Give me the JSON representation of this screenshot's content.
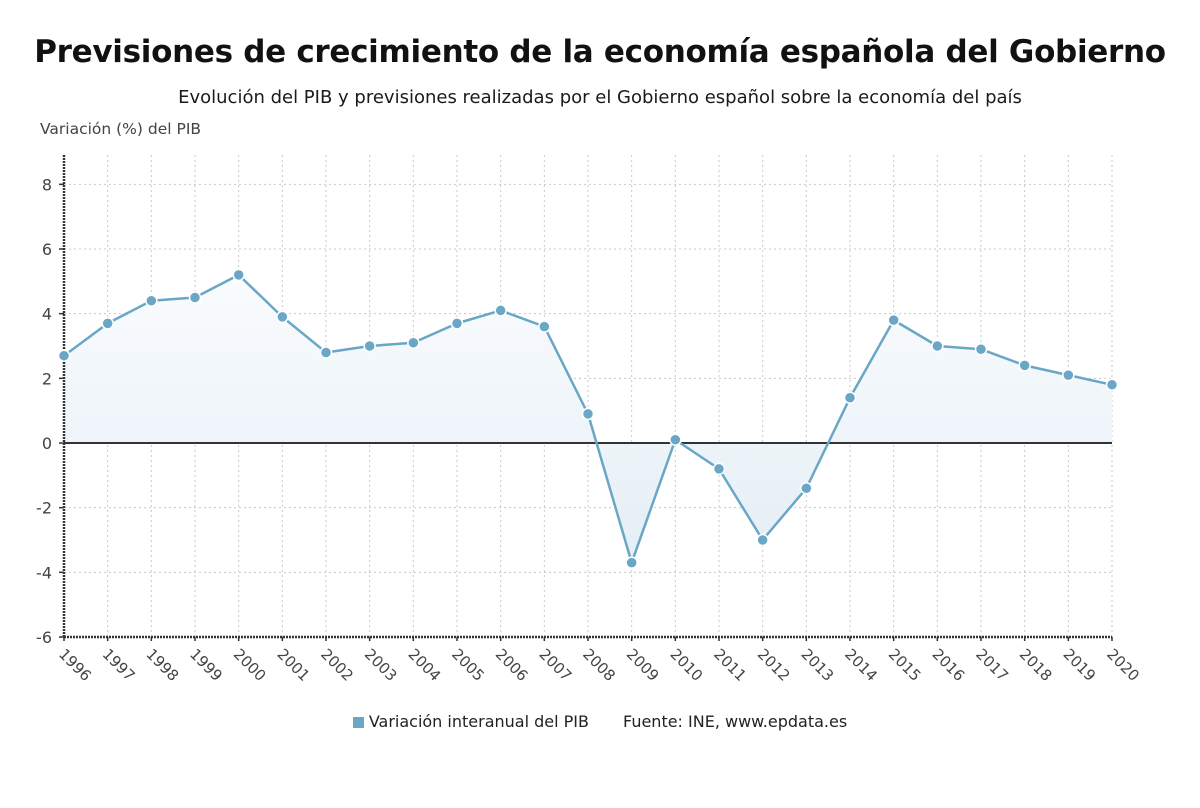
{
  "chart_data": {
    "type": "area",
    "title": "Previsiones de crecimiento de la economía española del Gobierno",
    "subtitle": "Evolución del PIB y previsiones realizadas por el Gobierno español sobre la economía del país",
    "xlabel": "",
    "ylabel": "Variación (%) del PIB",
    "x": [
      "1996",
      "1997",
      "1998",
      "1999",
      "2000",
      "2001",
      "2002",
      "2003",
      "2004",
      "2005",
      "2006",
      "2007",
      "2008",
      "2009",
      "2010",
      "2011",
      "2012",
      "2013",
      "2014",
      "2015",
      "2016",
      "2017",
      "2018",
      "2019",
      "2020"
    ],
    "series": [
      {
        "name": "Variación interanual del PIB",
        "values": [
          2.7,
          3.7,
          4.4,
          4.5,
          5.2,
          3.9,
          2.8,
          3.0,
          3.1,
          3.7,
          4.1,
          3.6,
          0.9,
          -3.7,
          0.1,
          -0.8,
          -3.0,
          -1.4,
          1.4,
          3.8,
          3.0,
          2.9,
          2.4,
          2.1,
          1.8
        ],
        "color": "#6aa6c6"
      }
    ],
    "ylim": [
      -6,
      9
    ],
    "yticks": [
      "-6",
      "-4",
      "-2",
      "0",
      "2",
      "4",
      "6",
      "8"
    ],
    "grid": true,
    "legend": "bottom-center",
    "source": "Fuente: INE, www.epdata.es"
  },
  "colors": {
    "line": "#6aa6c6",
    "fill_top": "#f7fafc",
    "fill_bottom": "#e6eff6",
    "zero_line": "#333333",
    "grid": "#c8c8c8"
  }
}
